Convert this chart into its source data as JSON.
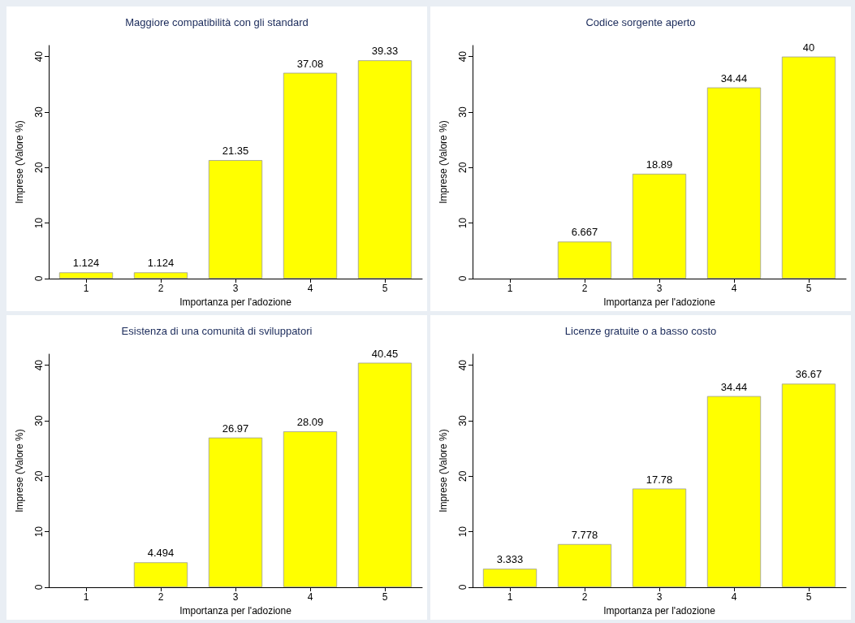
{
  "chart_data": [
    {
      "type": "bar",
      "title": "Maggiore compatibilità con gli standard",
      "xlabel": "Importanza per l'adozione",
      "ylabel": "Imprese (Valore %)",
      "categories": [
        "1",
        "2",
        "3",
        "4",
        "5"
      ],
      "values": [
        1.124,
        1.124,
        21.35,
        37.08,
        39.33
      ],
      "color": "#ffff00",
      "ylim": [
        0,
        42
      ],
      "yticks": [
        0,
        10,
        20,
        30,
        40
      ],
      "data_labels": true
    },
    {
      "type": "bar",
      "title": "Codice sorgente aperto",
      "xlabel": "Importanza per l'adozione",
      "ylabel": "Imprese (Valore %)",
      "categories": [
        "1",
        "2",
        "3",
        "4",
        "5"
      ],
      "values": [
        null,
        6.667,
        18.89,
        34.44,
        40
      ],
      "color": "#ffff00",
      "ylim": [
        0,
        42
      ],
      "yticks": [
        0,
        10,
        20,
        30,
        40
      ],
      "data_labels": true
    },
    {
      "type": "bar",
      "title": "Esistenza di una comunità di sviluppatori",
      "xlabel": "Importanza per l'adozione",
      "ylabel": "Imprese (Valore %)",
      "categories": [
        "1",
        "2",
        "3",
        "4",
        "5"
      ],
      "values": [
        null,
        4.494,
        26.97,
        28.09,
        40.45
      ],
      "color": "#ffff00",
      "ylim": [
        0,
        42
      ],
      "yticks": [
        0,
        10,
        20,
        30,
        40
      ],
      "data_labels": true
    },
    {
      "type": "bar",
      "title": "Licenze gratuite o a basso costo",
      "xlabel": "Importanza per l'adozione",
      "ylabel": "Imprese (Valore %)",
      "categories": [
        "1",
        "2",
        "3",
        "4",
        "5"
      ],
      "values": [
        3.333,
        7.778,
        17.78,
        34.44,
        36.67
      ],
      "color": "#ffff00",
      "ylim": [
        0,
        42
      ],
      "yticks": [
        0,
        10,
        20,
        30,
        40
      ],
      "data_labels": true
    }
  ]
}
